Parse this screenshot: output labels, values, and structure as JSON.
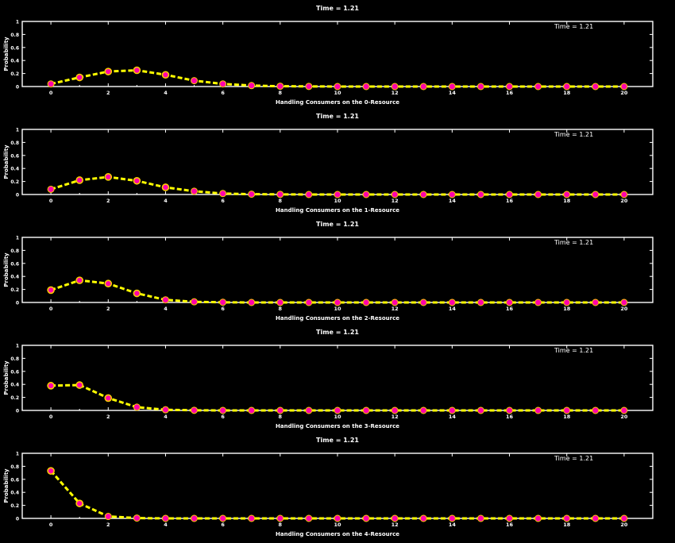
{
  "colors": {
    "background": "#000000",
    "axes": "#ffffff",
    "line": "#ffff00",
    "marker_fill": "#ff00aa",
    "marker_ring": "#ffcc00"
  },
  "chart_data": [
    {
      "type": "line",
      "title": "Time =  1.21",
      "annotation": "Time = 1.21",
      "xlabel": "Handling Consumers on the 0-Resource",
      "ylabel": "Probability",
      "xlim": [
        -1,
        21
      ],
      "ylim": [
        0,
        1
      ],
      "xticks": [
        0,
        2,
        4,
        6,
        8,
        10,
        12,
        14,
        16,
        18,
        20
      ],
      "yticks": [
        0,
        0.2,
        0.4,
        0.6,
        0.8,
        1
      ],
      "x": [
        0,
        1,
        2,
        3,
        4,
        5,
        6,
        7,
        8,
        9,
        10,
        11,
        12,
        13,
        14,
        15,
        16,
        17,
        18,
        19,
        20
      ],
      "values": [
        0.04,
        0.14,
        0.23,
        0.25,
        0.18,
        0.09,
        0.04,
        0.015,
        0.005,
        0.002,
        0,
        0,
        0,
        0,
        0,
        0,
        0,
        0,
        0,
        0,
        0
      ]
    },
    {
      "type": "line",
      "title": "Time =  1.21",
      "annotation": "Time = 1.21",
      "xlabel": "Handling Consumers on the 1-Resource",
      "ylabel": "Probability",
      "xlim": [
        -1,
        21
      ],
      "ylim": [
        0,
        1
      ],
      "xticks": [
        0,
        2,
        4,
        6,
        8,
        10,
        12,
        14,
        16,
        18,
        20
      ],
      "yticks": [
        0,
        0.2,
        0.4,
        0.6,
        0.8,
        1
      ],
      "x": [
        0,
        1,
        2,
        3,
        4,
        5,
        6,
        7,
        8,
        9,
        10,
        11,
        12,
        13,
        14,
        15,
        16,
        17,
        18,
        19,
        20
      ],
      "values": [
        0.08,
        0.22,
        0.27,
        0.21,
        0.11,
        0.05,
        0.015,
        0.005,
        0.002,
        0,
        0,
        0,
        0,
        0,
        0,
        0,
        0,
        0,
        0,
        0,
        0
      ]
    },
    {
      "type": "line",
      "title": "Time =  1.21",
      "annotation": "Time = 1.21",
      "xlabel": "Handling Consumers on the 2-Resource",
      "ylabel": "Probability",
      "xlim": [
        -1,
        21
      ],
      "ylim": [
        0,
        1
      ],
      "xticks": [
        0,
        2,
        4,
        6,
        8,
        10,
        12,
        14,
        16,
        18,
        20
      ],
      "yticks": [
        0,
        0.2,
        0.4,
        0.6,
        0.8,
        1
      ],
      "x": [
        0,
        1,
        2,
        3,
        4,
        5,
        6,
        7,
        8,
        9,
        10,
        11,
        12,
        13,
        14,
        15,
        16,
        17,
        18,
        19,
        20
      ],
      "values": [
        0.19,
        0.34,
        0.29,
        0.14,
        0.04,
        0.01,
        0.003,
        0,
        0,
        0,
        0,
        0,
        0,
        0,
        0,
        0,
        0,
        0,
        0,
        0,
        0
      ]
    },
    {
      "type": "line",
      "title": "Time =  1.21",
      "annotation": "Time = 1.21",
      "xlabel": "Handling Consumers on the 3-Resource",
      "ylabel": "Probability",
      "xlim": [
        -1,
        21
      ],
      "ylim": [
        0,
        1
      ],
      "xticks": [
        0,
        2,
        4,
        6,
        8,
        10,
        12,
        14,
        16,
        18,
        20
      ],
      "yticks": [
        0,
        0.2,
        0.4,
        0.6,
        0.8,
        1
      ],
      "x": [
        0,
        1,
        2,
        3,
        4,
        5,
        6,
        7,
        8,
        9,
        10,
        11,
        12,
        13,
        14,
        15,
        16,
        17,
        18,
        19,
        20
      ],
      "values": [
        0.38,
        0.39,
        0.19,
        0.05,
        0.01,
        0.002,
        0,
        0,
        0,
        0,
        0,
        0,
        0,
        0,
        0,
        0,
        0,
        0,
        0,
        0,
        0
      ]
    },
    {
      "type": "line",
      "title": "Time =  1.21",
      "annotation": "Time = 1.21",
      "xlabel": "Handling Consumers on the 4-Resource",
      "ylabel": "Probability",
      "xlim": [
        -1,
        21
      ],
      "ylim": [
        0,
        1
      ],
      "xticks": [
        0,
        2,
        4,
        6,
        8,
        10,
        12,
        14,
        16,
        18,
        20
      ],
      "yticks": [
        0,
        0.2,
        0.4,
        0.6,
        0.8,
        1
      ],
      "x": [
        0,
        1,
        2,
        3,
        4,
        5,
        6,
        7,
        8,
        9,
        10,
        11,
        12,
        13,
        14,
        15,
        16,
        17,
        18,
        19,
        20
      ],
      "values": [
        0.73,
        0.23,
        0.03,
        0.005,
        0,
        0,
        0,
        0,
        0,
        0,
        0,
        0,
        0,
        0,
        0,
        0,
        0,
        0,
        0,
        0,
        0
      ]
    }
  ]
}
